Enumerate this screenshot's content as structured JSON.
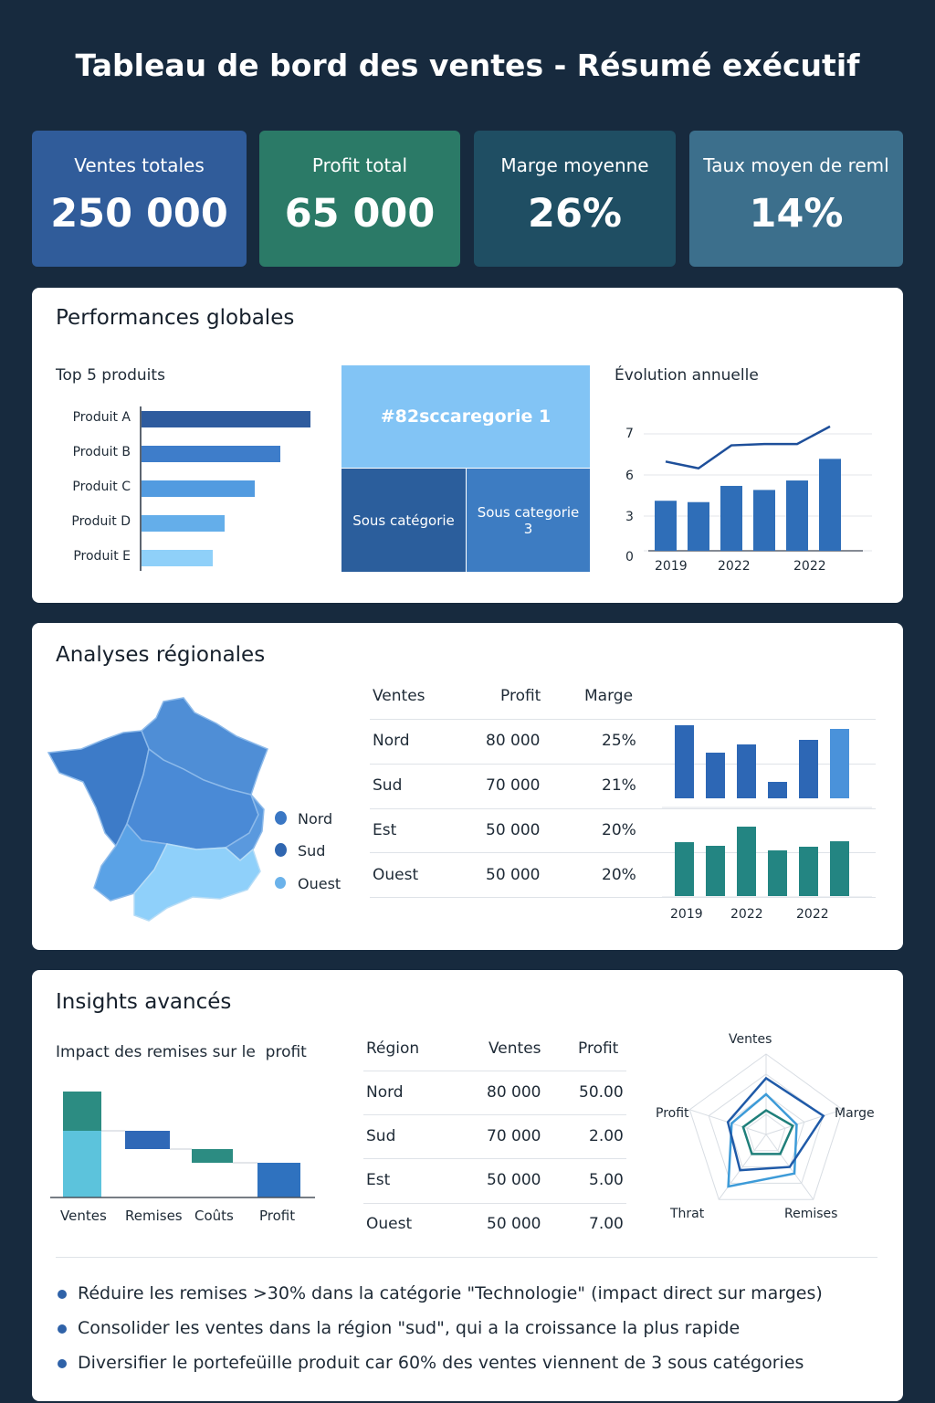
{
  "header": {
    "title": "Tableau de bord des ventes - Résumé exécutif"
  },
  "kpis": [
    {
      "label": "Ventes totales",
      "value": "250 000",
      "color": "#305c9a"
    },
    {
      "label": "Profit total",
      "value": "65 000",
      "color": "#2b7a67"
    },
    {
      "label": "Marge moyenne",
      "value": "26%",
      "color": "#1f4e63"
    },
    {
      "label": "Taux moyen de reml",
      "value": "14%",
      "color": "#3c6f8c"
    }
  ],
  "performance": {
    "title": "Performances globales",
    "top5": {
      "title": "Top 5 produits",
      "labels": [
        "Produit A",
        "Produit B",
        "Produit C",
        "Produit D",
        "Produit E"
      ],
      "values": [
        100,
        82,
        67,
        49,
        42
      ]
    },
    "treemap": {
      "top": "#82sccaregorie 1",
      "bottom_left": "Sous catégorie",
      "bottom_right": "Sous categorie 3"
    },
    "evolution": {
      "title": "Évolution annuelle",
      "y_ticks": [
        "7",
        "6",
        "3",
        "0"
      ],
      "x_ticks": [
        "2019",
        "2022",
        "2022"
      ],
      "bars": [
        3.7,
        3.6,
        4.8,
        4.5,
        5.2,
        6.8
      ],
      "line": [
        6.6,
        6.1,
        7.8,
        7.9,
        7.9,
        9.2
      ]
    }
  },
  "regional": {
    "title": "Analyses régionales",
    "legend": [
      "Nord",
      "Sud",
      "Ouest"
    ],
    "table": {
      "headers": [
        "Ventes",
        "Profit",
        "Marge"
      ],
      "rows": [
        {
          "region": "Nord",
          "profit": "80 000",
          "marge": "25%"
        },
        {
          "region": "Sud",
          "profit": "70 000",
          "marge": "21%"
        },
        {
          "region": "Est",
          "profit": "50 000",
          "marge": "20%"
        },
        {
          "region": "Ouest",
          "profit": "50 000",
          "marge": "20%"
        }
      ]
    },
    "mini_bars_top": [
      80,
      50,
      59,
      18,
      64,
      76
    ],
    "mini_bars_bottom": [
      59,
      55,
      76,
      50,
      54,
      60
    ],
    "x_ticks": [
      "2019",
      "2022",
      "2022"
    ]
  },
  "insights": {
    "title": "Insights avancés",
    "waterfall": {
      "title": "Impact des remises sur le  profit",
      "labels": [
        "Ventes",
        "Remises",
        "Coûts",
        "Profit"
      ]
    },
    "table": {
      "headers": [
        "Région",
        "Ventes",
        "Profit"
      ],
      "rows": [
        {
          "region": "Nord",
          "ventes": "80 000",
          "profit": "50.00"
        },
        {
          "region": "Sud",
          "ventes": "70 000",
          "profit": "2.00"
        },
        {
          "region": "Est",
          "ventes": "50 000",
          "profit": "5.00"
        },
        {
          "region": "Ouest",
          "ventes": "50 000",
          "profit": "7.00"
        }
      ]
    },
    "radar": {
      "axes": [
        "Ventes",
        "Marge",
        "Remises",
        "Thrat",
        "Profit"
      ],
      "series_a": [
        0.7,
        0.75,
        0.5,
        0.55,
        0.5
      ],
      "series_b": [
        0.5,
        0.4,
        0.6,
        0.8,
        0.45
      ],
      "series_c": [
        0.3,
        0.35,
        0.3,
        0.3,
        0.3
      ]
    },
    "bullets": [
      "Réduire les remises >30% dans la catégorie \"Technologie\" (impact direct sur marges)",
      "Consolider les ventes dans la région \"sud\", qui a la croissance la plus rapide",
      "Diversifier le portefeüille produit car 60% des ventes viennent de 3 sous  catégories"
    ]
  }
}
